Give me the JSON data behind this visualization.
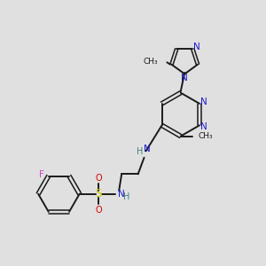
{
  "bg_color": "#e0e0e0",
  "bond_color": "#1a1a1a",
  "N_color": "#1a1acc",
  "S_color": "#cccc00",
  "O_color": "#dd0000",
  "F_color": "#cc44cc",
  "H_color": "#408080",
  "figsize": [
    3.0,
    3.0
  ],
  "dpi": 100,
  "xlim": [
    0,
    10
  ],
  "ylim": [
    0,
    10
  ]
}
